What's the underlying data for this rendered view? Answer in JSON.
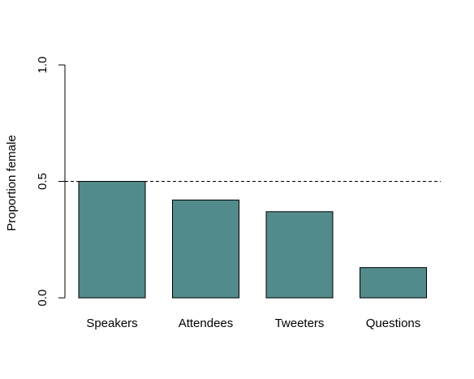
{
  "chart_data": {
    "type": "bar",
    "categories": [
      "Speakers",
      "Attendees",
      "Tweeters",
      "Questions"
    ],
    "values": [
      0.5,
      0.42,
      0.37,
      0.13
    ],
    "title": "",
    "xlabel": "",
    "ylabel": "Proportion female",
    "ylim": [
      0,
      1
    ],
    "yticks": [
      0.0,
      0.5,
      1.0
    ],
    "ytick_labels": [
      "0.0",
      "0.5",
      "1.0"
    ],
    "reference_line": {
      "y": 0.5,
      "style": "dashed"
    },
    "grid": false,
    "bar_color": "#528b8b",
    "bar_edge_color": "#000000"
  }
}
